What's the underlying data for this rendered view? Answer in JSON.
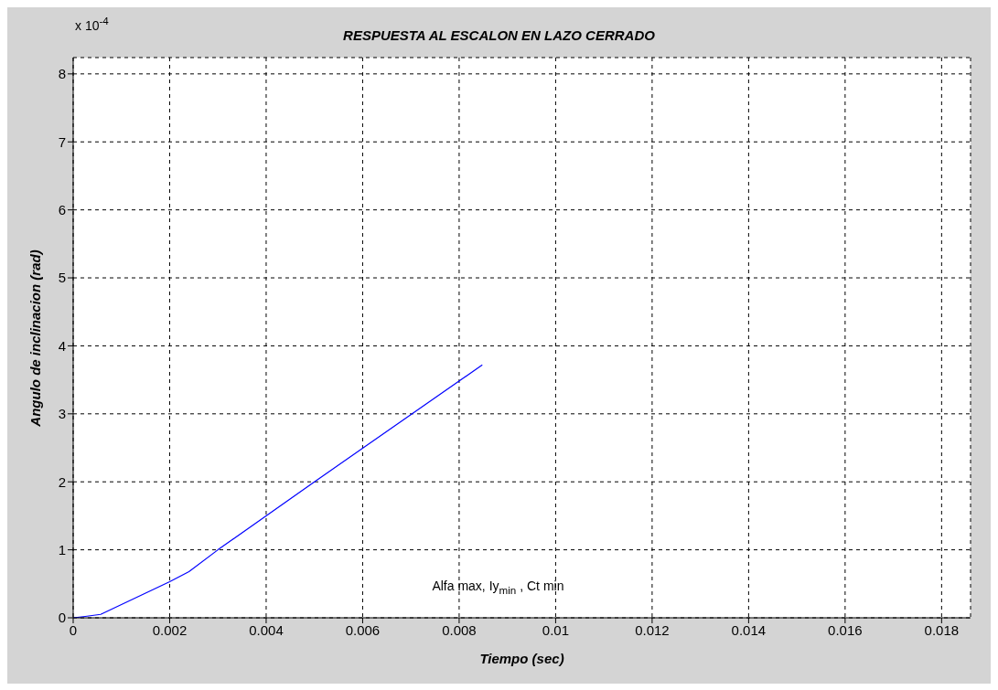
{
  "chart_data": {
    "type": "line",
    "title": "RESPUESTA AL ESCALON EN LAZO CERRADO",
    "xlabel": "Tiempo (sec)",
    "ylabel": "Angulo de inclinacion (rad)",
    "annotations": [
      "x 10$^{-4}$",
      "Alfa max, Iy$_{min}$ , Ct min"
    ],
    "x": [
      0,
      0.00025,
      0.00057,
      0.002,
      0.0024,
      0.003,
      0.005,
      0.00848
    ],
    "series": [
      {
        "color": "#0000ff",
        "values": [
          0,
          0.02,
          0.05,
          0.53,
          0.68,
          1.0,
          2.0,
          3.72
        ]
      }
    ],
    "xlim": [
      0,
      0.0186
    ],
    "xticks": [
      0,
      0.002,
      0.004,
      0.006,
      0.008,
      0.01,
      0.012,
      0.014,
      0.016,
      0.018
    ],
    "ylim": [
      0,
      8.24
    ],
    "yticks": [
      0,
      1,
      2,
      3,
      4,
      5,
      6,
      7,
      8
    ],
    "grid": true,
    "legend": false,
    "marker": "none",
    "line_style": "solid"
  }
}
